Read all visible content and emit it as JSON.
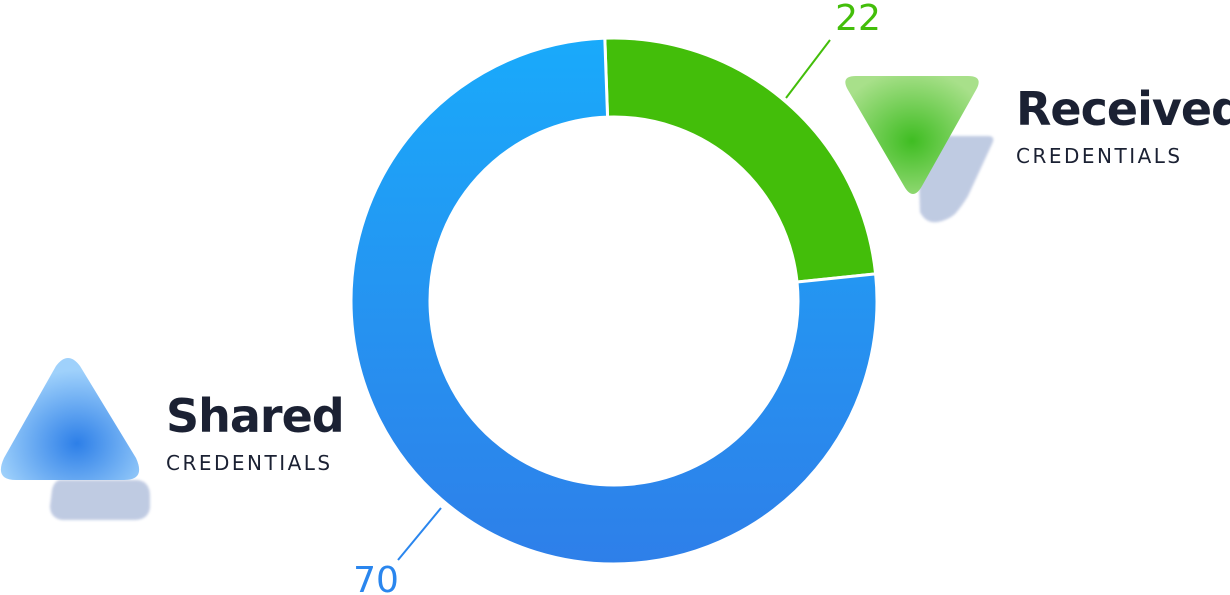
{
  "chart_data": {
    "type": "donut",
    "series": [
      {
        "name": "Received",
        "subtitle": "CREDENTIALS",
        "value": 22,
        "color": "#43be0a",
        "icon": "triangle-down-icon"
      },
      {
        "name": "Shared",
        "subtitle": "CREDENTIALS",
        "value": 70,
        "color": "#2a86ee",
        "icon": "triangle-up-icon"
      }
    ]
  }
}
